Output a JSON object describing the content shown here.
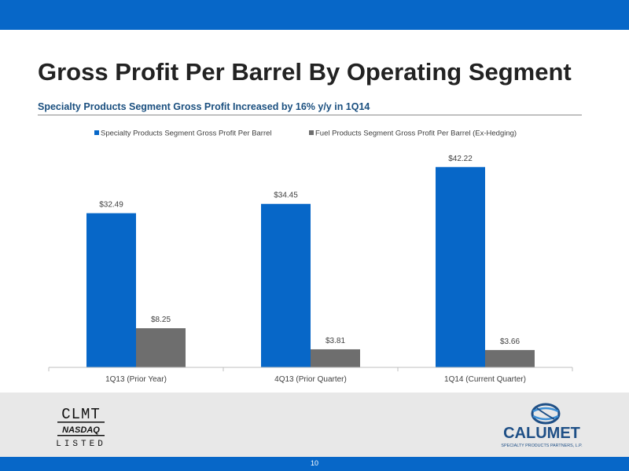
{
  "page": {
    "title": "Gross Profit Per Barrel By Operating Segment",
    "subtitle": "Specialty Products Segment Gross Profit Increased by 16% y/y in 1Q14",
    "page_number": "10",
    "brand_color": "#0767c8",
    "nasdaq_logo": {
      "line1": "CLMT",
      "line2": "NASDAQ",
      "line3": "LISTED"
    },
    "calumet_logo": {
      "name": "CALUMET",
      "tagline": "SPECIALTY PRODUCTS PARTNERS, L.P."
    }
  },
  "chart_data": {
    "type": "bar",
    "title": "",
    "xlabel": "",
    "ylabel": "",
    "categories": [
      "1Q13 (Prior Year)",
      "4Q13 (Prior Quarter)",
      "1Q14 (Current Quarter)"
    ],
    "series": [
      {
        "name": "Specialty Products Segment Gross Profit Per Barrel",
        "color": "#0767c8",
        "values": [
          32.49,
          34.45,
          42.22
        ],
        "labels": [
          "$32.49",
          "$34.45",
          "$42.22"
        ]
      },
      {
        "name": "Fuel Products Segment Gross Profit Per Barrel (Ex-Hedging)",
        "color": "#6e6e6e",
        "values": [
          8.25,
          3.81,
          3.66
        ],
        "labels": [
          "$8.25",
          "$3.81",
          "$3.66"
        ]
      }
    ],
    "ylim": [
      0,
      44
    ],
    "grid": false,
    "legend": "top-center",
    "label_color": "#404040",
    "axis_color": "#bfbfbf"
  }
}
